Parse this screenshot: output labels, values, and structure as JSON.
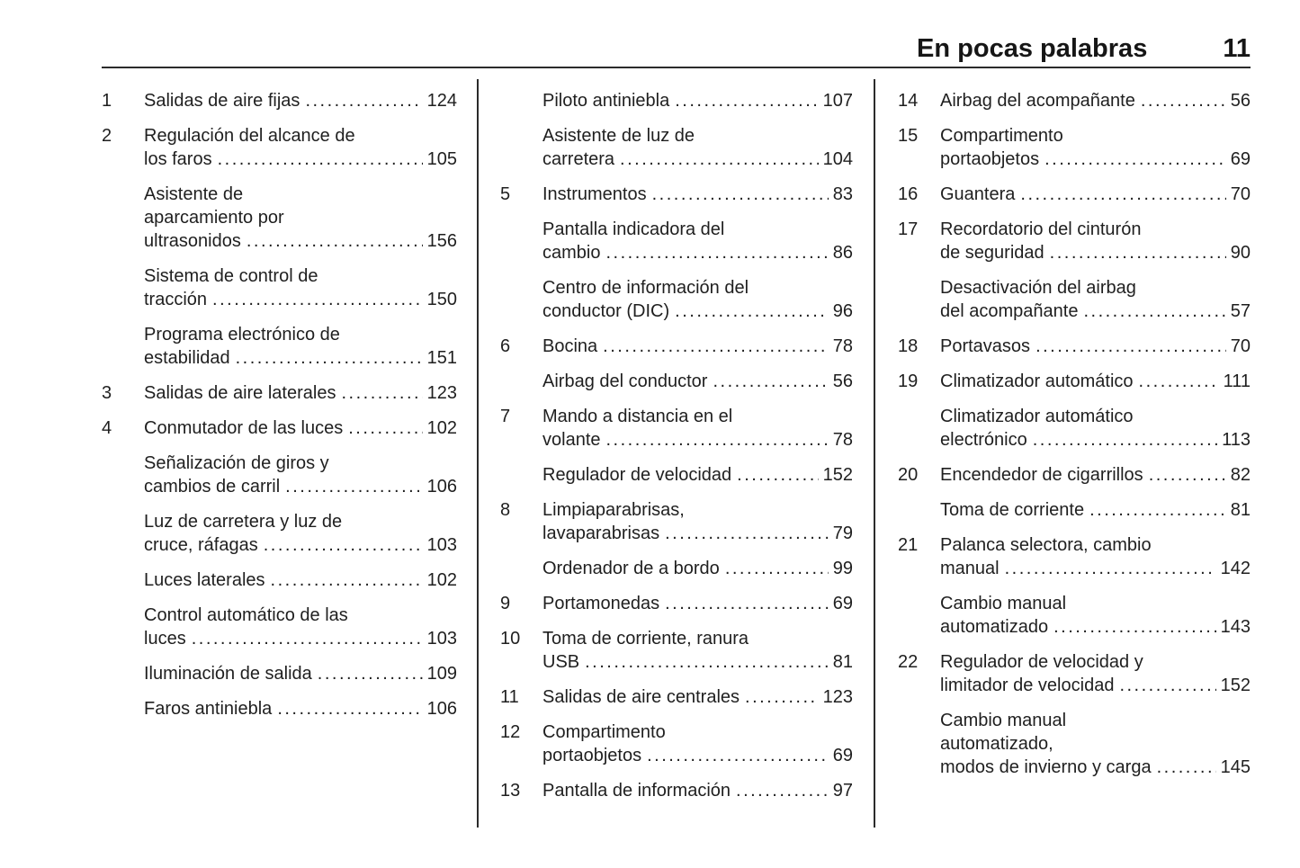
{
  "header": {
    "title": "En pocas palabras",
    "page_number": "11"
  },
  "columns": [
    {
      "entries": [
        {
          "num": "1",
          "lines": [
            "Salidas de aire fijas"
          ],
          "page": "124"
        },
        {
          "num": "2",
          "lines": [
            "Regulación del alcance de",
            "los faros"
          ],
          "page": "105"
        },
        {
          "num": "",
          "lines": [
            "Asistente de",
            "aparcamiento por",
            "ultrasonidos"
          ],
          "page": "156"
        },
        {
          "num": "",
          "lines": [
            "Sistema de control de",
            "tracción"
          ],
          "page": "150"
        },
        {
          "num": "",
          "lines": [
            "Programa electrónico de",
            "estabilidad"
          ],
          "page": "151"
        },
        {
          "num": "3",
          "lines": [
            "Salidas de aire laterales"
          ],
          "page": "123"
        },
        {
          "num": "4",
          "lines": [
            "Conmutador de las luces"
          ],
          "page": "102"
        },
        {
          "num": "",
          "lines": [
            "Señalización de giros y",
            "cambios de carril"
          ],
          "page": "106"
        },
        {
          "num": "",
          "lines": [
            "Luz de carretera y luz de",
            "cruce, ráfagas"
          ],
          "page": "103"
        },
        {
          "num": "",
          "lines": [
            "Luces laterales"
          ],
          "page": "102"
        },
        {
          "num": "",
          "lines": [
            "Control automático de las",
            "luces"
          ],
          "page": "103"
        },
        {
          "num": "",
          "lines": [
            "Iluminación de salida"
          ],
          "page": "109"
        },
        {
          "num": "",
          "lines": [
            "Faros antiniebla"
          ],
          "page": "106"
        }
      ]
    },
    {
      "entries": [
        {
          "num": "",
          "lines": [
            "Piloto antiniebla"
          ],
          "page": "107"
        },
        {
          "num": "",
          "lines": [
            "Asistente de luz de",
            "carretera"
          ],
          "page": "104"
        },
        {
          "num": "5",
          "lines": [
            "Instrumentos"
          ],
          "page": "83"
        },
        {
          "num": "",
          "lines": [
            "Pantalla indicadora del",
            "cambio"
          ],
          "page": "86"
        },
        {
          "num": "",
          "lines": [
            "Centro de información del",
            "conductor (DIC)"
          ],
          "page": "96"
        },
        {
          "num": "6",
          "lines": [
            "Bocina"
          ],
          "page": "78"
        },
        {
          "num": "",
          "lines": [
            "Airbag del conductor"
          ],
          "page": "56"
        },
        {
          "num": "7",
          "lines": [
            "Mando a distancia en el",
            "volante"
          ],
          "page": "78"
        },
        {
          "num": "",
          "lines": [
            "Regulador de velocidad"
          ],
          "page": "152"
        },
        {
          "num": "8",
          "lines": [
            "Limpiaparabrisas,",
            "lavaparabrisas"
          ],
          "page": "79"
        },
        {
          "num": "",
          "lines": [
            "Ordenador de a bordo"
          ],
          "page": "99"
        },
        {
          "num": "9",
          "lines": [
            "Portamonedas"
          ],
          "page": "69"
        },
        {
          "num": "10",
          "lines": [
            "Toma de corriente, ranura",
            "USB"
          ],
          "page": "81"
        },
        {
          "num": "11",
          "lines": [
            "Salidas de aire centrales"
          ],
          "page": "123"
        },
        {
          "num": "12",
          "lines": [
            "Compartimento",
            "portaobjetos"
          ],
          "page": "69"
        },
        {
          "num": "13",
          "lines": [
            "Pantalla de información"
          ],
          "page": "97"
        }
      ]
    },
    {
      "entries": [
        {
          "num": "14",
          "lines": [
            "Airbag del acompañante"
          ],
          "page": "56"
        },
        {
          "num": "15",
          "lines": [
            "Compartimento",
            "portaobjetos"
          ],
          "page": "69"
        },
        {
          "num": "16",
          "lines": [
            "Guantera"
          ],
          "page": "70"
        },
        {
          "num": "17",
          "lines": [
            "Recordatorio del cinturón",
            "de seguridad"
          ],
          "page": "90"
        },
        {
          "num": "",
          "lines": [
            "Desactivación del airbag",
            "del acompañante"
          ],
          "page": "57"
        },
        {
          "num": "18",
          "lines": [
            "Portavasos"
          ],
          "page": "70"
        },
        {
          "num": "19",
          "lines": [
            "Climatizador automático"
          ],
          "page": "111"
        },
        {
          "num": "",
          "lines": [
            "Climatizador automático",
            "electrónico"
          ],
          "page": "113"
        },
        {
          "num": "20",
          "lines": [
            "Encendedor de cigarrillos"
          ],
          "page": "82"
        },
        {
          "num": "",
          "lines": [
            "Toma de corriente"
          ],
          "page": "81"
        },
        {
          "num": "21",
          "lines": [
            "Palanca selectora, cambio",
            "manual"
          ],
          "page": "142"
        },
        {
          "num": "",
          "lines": [
            "Cambio manual",
            "automatizado"
          ],
          "page": "143"
        },
        {
          "num": "22",
          "lines": [
            "Regulador de velocidad y",
            "limitador de velocidad"
          ],
          "page": "152"
        },
        {
          "num": "",
          "lines": [
            "Cambio manual",
            "automatizado,",
            "modos de invierno y carga"
          ],
          "page": "145"
        }
      ]
    }
  ]
}
